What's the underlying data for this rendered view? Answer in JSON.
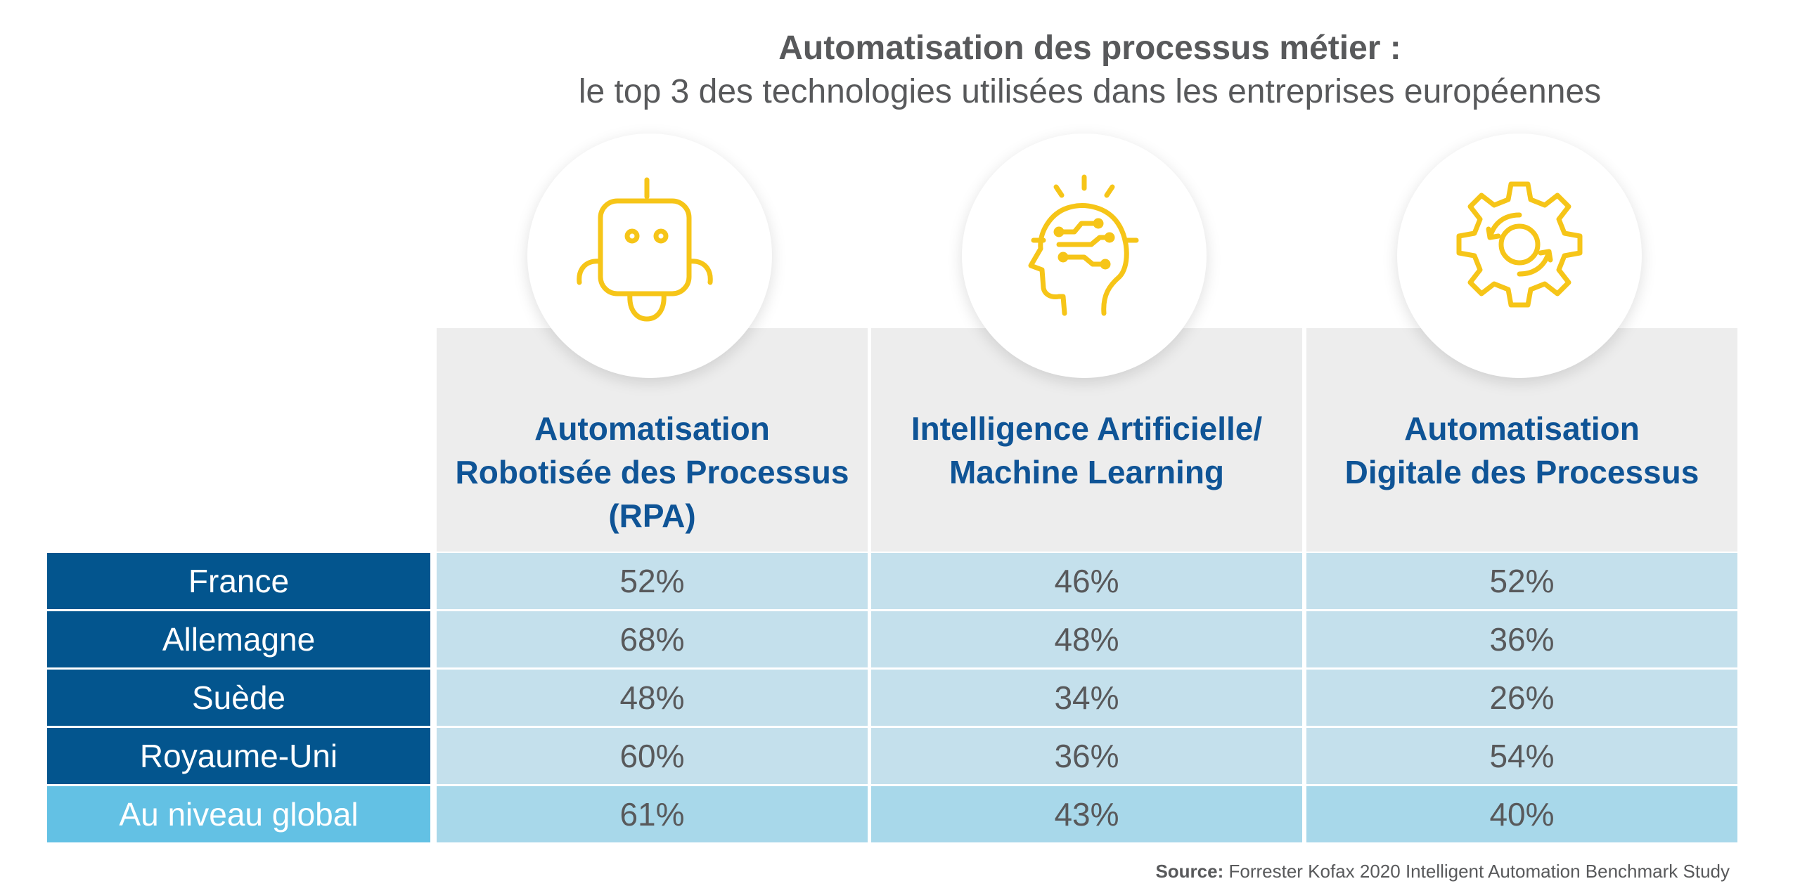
{
  "title": "Automatisation des processus métier :",
  "subtitle": "le top 3 des technologies utilisées dans les entreprises européennes",
  "columns": [
    {
      "label": "Automatisation\nRobotisée des Processus\n(RPA)",
      "icon": "robot-icon"
    },
    {
      "label": "Intelligence Artificielle/\nMachine Learning",
      "icon": "ai-head-icon"
    },
    {
      "label": "Automatisation\nDigitale des Processus",
      "icon": "gear-cycle-icon"
    }
  ],
  "rows": [
    {
      "label": "France",
      "values": [
        "52%",
        "46%",
        "52%"
      ]
    },
    {
      "label": "Allemagne",
      "values": [
        "68%",
        "48%",
        "36%"
      ]
    },
    {
      "label": "Suède",
      "values": [
        "48%",
        "34%",
        "26%"
      ]
    },
    {
      "label": "Royaume-Uni",
      "values": [
        "60%",
        "36%",
        "54%"
      ]
    },
    {
      "label": "Au niveau global",
      "values": [
        "61%",
        "43%",
        "40%"
      ]
    }
  ],
  "source": {
    "label": "Source:",
    "text": " Forrester Kofax 2020 Intelligent Automation Benchmark Study"
  },
  "colors": {
    "heading_blue": "#0f5496",
    "row_label_dark": "#03558e",
    "row_label_global": "#63c1e4",
    "cell": "#c4e0ec",
    "cell_global": "#a8d8ea",
    "icon_yellow": "#f6c518"
  },
  "chart_data": {
    "type": "table",
    "title": "Automatisation des processus métier :",
    "subtitle": "le top 3 des technologies utilisées dans les entreprises européennes",
    "columns": [
      "Automatisation Robotisée des Processus (RPA)",
      "Intelligence Artificielle/ Machine Learning",
      "Automatisation Digitale des Processus"
    ],
    "rows": [
      "France",
      "Allemagne",
      "Suède",
      "Royaume-Uni",
      "Au niveau global"
    ],
    "values": [
      [
        52,
        46,
        52
      ],
      [
        68,
        48,
        36
      ],
      [
        48,
        34,
        26
      ],
      [
        60,
        36,
        54
      ],
      [
        61,
        43,
        40
      ]
    ],
    "unit": "%"
  }
}
